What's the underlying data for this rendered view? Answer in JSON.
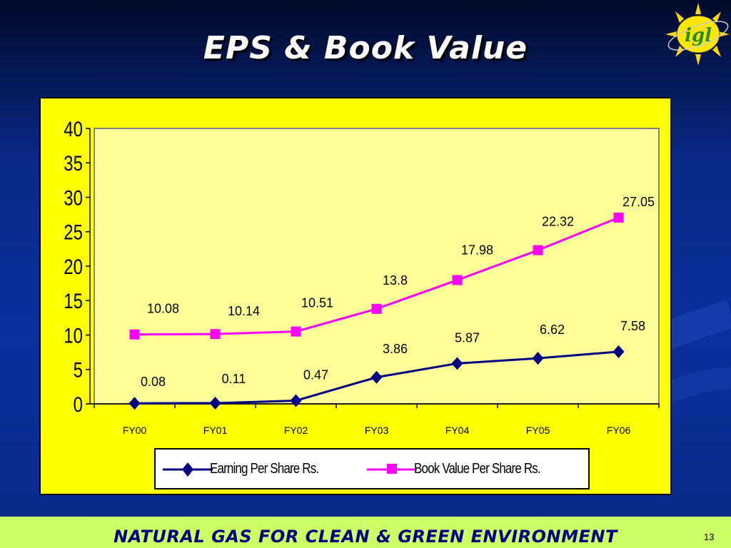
{
  "slide": {
    "title": "EPS & Book Value",
    "footer": "NATURAL GAS FOR CLEAN & GREEN ENVIRONMENT",
    "page_number": "13",
    "sub_marker": "1",
    "logo_text": "igl"
  },
  "colors": {
    "background": "#0b2f9c",
    "chart_frame": "#ffff00",
    "plot_area": "#ffff99",
    "eps_series": "#000080",
    "bv_series": "#ff00ff",
    "footer_band": "#ccff66",
    "footer_text": "#000080"
  },
  "chart_data": {
    "type": "line",
    "categories": [
      "FY00",
      "FY01",
      "FY02",
      "FY03",
      "FY04",
      "FY05",
      "FY06"
    ],
    "ylim": [
      0,
      40
    ],
    "yticks": [
      0,
      5,
      10,
      15,
      20,
      25,
      30,
      35,
      40
    ],
    "grid": false,
    "legend_position": "bottom",
    "series": [
      {
        "name": "Earning Per Share Rs.",
        "marker": "diamond",
        "values": [
          0.08,
          0.11,
          0.47,
          3.86,
          5.87,
          6.62,
          7.58
        ],
        "labels": [
          "0.08",
          "0.11",
          "0.47",
          "3.86",
          "5.87",
          "6.62",
          "7.58"
        ]
      },
      {
        "name": "Book Value Per Share  Rs.",
        "marker": "square",
        "values": [
          10.08,
          10.14,
          10.51,
          13.8,
          17.98,
          22.32,
          27.05
        ],
        "labels": [
          "10.08",
          "10.14",
          "10.51",
          "13.8",
          "17.98",
          "22.32",
          "27.05"
        ]
      }
    ]
  }
}
